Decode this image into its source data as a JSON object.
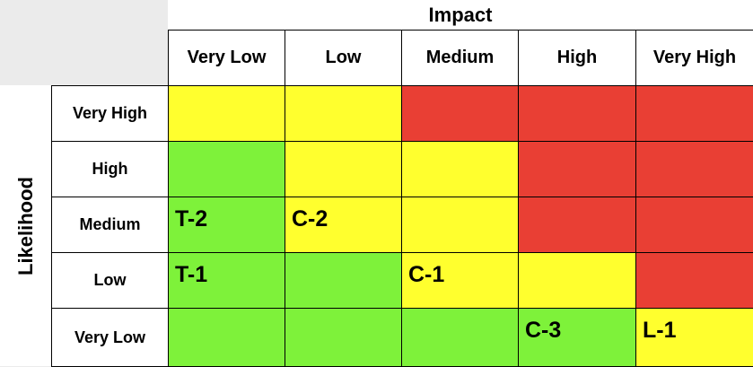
{
  "impact_title": "Impact",
  "likelihood_title": "Likelihood",
  "impact_levels": [
    "Very Low",
    "Low",
    "Medium",
    "High",
    "Very High"
  ],
  "likelihood_levels": [
    "Very High",
    "High",
    "Medium",
    "Low",
    "Very Low"
  ],
  "colors": {
    "green": "#7ef23a",
    "yellow": "#ffff2e",
    "red": "#e93f34"
  },
  "matrix": [
    [
      "yellow",
      "yellow",
      "red",
      "red",
      "red"
    ],
    [
      "green",
      "yellow",
      "yellow",
      "red",
      "red"
    ],
    [
      "green",
      "yellow",
      "yellow",
      "red",
      "red"
    ],
    [
      "green",
      "green",
      "yellow",
      "yellow",
      "red"
    ],
    [
      "green",
      "green",
      "green",
      "green",
      "yellow"
    ]
  ],
  "risk_items": [
    {
      "label": "T-2",
      "likelihood": "Medium",
      "impact": "Very Low"
    },
    {
      "label": "C-2",
      "likelihood": "Medium",
      "impact": "Low"
    },
    {
      "label": "T-1",
      "likelihood": "Low",
      "impact": "Very Low"
    },
    {
      "label": "C-1",
      "likelihood": "Low",
      "impact": "Medium"
    },
    {
      "label": "C-3",
      "likelihood": "Very Low",
      "impact": "High"
    },
    {
      "label": "L-1",
      "likelihood": "Very Low",
      "impact": "Very High"
    }
  ]
}
